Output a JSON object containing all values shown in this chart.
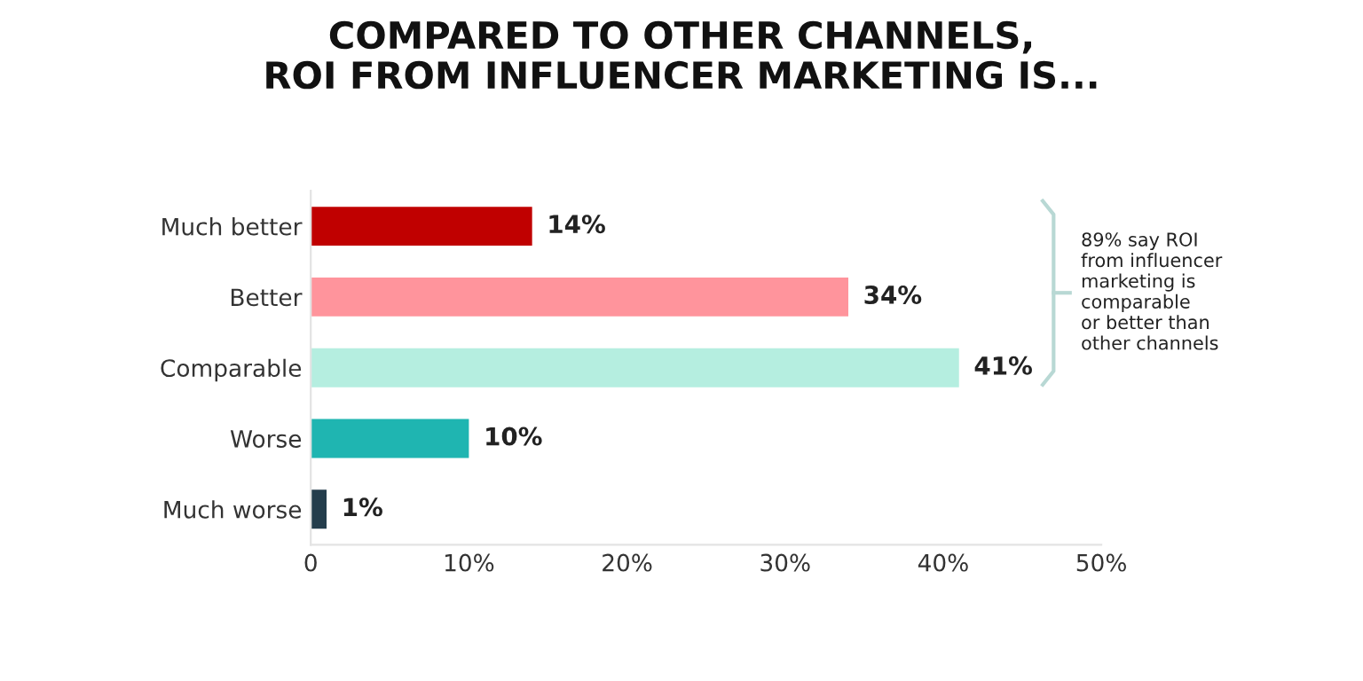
{
  "chart_data": {
    "type": "bar",
    "orientation": "horizontal",
    "title": "COMPARED TO OTHER CHANNELS,\nROI FROM INFLUENCER MARKETING IS...",
    "categories": [
      "Much better",
      "Better",
      "Comparable",
      "Worse",
      "Much worse"
    ],
    "values": [
      14,
      34,
      41,
      10,
      1
    ],
    "colors": [
      "#c00000",
      "#ff949c",
      "#b5eee0",
      "#1fb5b1",
      "#243d4c"
    ],
    "value_labels": [
      "14%",
      "34%",
      "41%",
      "10%",
      "1%"
    ],
    "xlim": [
      0,
      50
    ],
    "xticks": [
      0,
      {
        "value": 10,
        "label": "10%"
      },
      {
        "value": 20,
        "label": "20%"
      },
      {
        "value": 30,
        "label": "30%"
      },
      {
        "value": 40,
        "label": "40%"
      },
      {
        "value": 50,
        "label": "50%"
      }
    ],
    "grid": false,
    "legend": false,
    "annotations": [
      "89% say ROI\nfrom influencer\nmarketing is\ncomparable\nor better than\nother channels"
    ]
  }
}
